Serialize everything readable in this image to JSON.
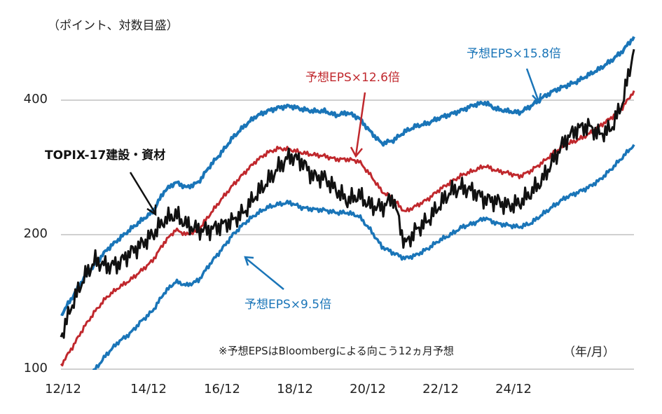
{
  "chart_data": {
    "type": "line",
    "title": "",
    "ylabel": "（ポイント、対数目盛）",
    "xlabel": "（年/月）",
    "yscale": "log",
    "ylim": [
      100,
      560
    ],
    "yticks": [
      "100",
      "200",
      "400"
    ],
    "xticks": [
      "12/12",
      "14/12",
      "16/12",
      "18/12",
      "20/12",
      "22/12",
      "24/12"
    ],
    "grid": "horizontal",
    "legend": "none (inline annotations with arrows)",
    "note": "※予想EPSはBloombergによる向こう12ヵ月予想",
    "x": [
      "2012-11",
      "2013-02",
      "2013-05",
      "2013-08",
      "2013-11",
      "2014-02",
      "2014-05",
      "2014-08",
      "2014-11",
      "2015-02",
      "2015-05",
      "2015-08",
      "2015-11",
      "2016-02",
      "2016-05",
      "2016-08",
      "2016-11",
      "2017-02",
      "2017-05",
      "2017-08",
      "2017-11",
      "2018-02",
      "2018-05",
      "2018-08",
      "2018-11",
      "2019-02",
      "2019-05",
      "2019-08",
      "2019-11",
      "2020-02",
      "2020-05",
      "2020-08",
      "2020-11",
      "2021-02",
      "2021-05",
      "2021-08",
      "2021-11",
      "2022-02",
      "2022-05",
      "2022-08",
      "2022-11",
      "2023-02",
      "2023-05",
      "2023-08",
      "2023-11",
      "2024-02",
      "2024-05",
      "2024-08",
      "2024-11",
      "2025-02",
      "2025-04"
    ],
    "series": [
      {
        "name": "TOPIX-17建設・資材",
        "color": "#111111",
        "values": [
          118,
          140,
          160,
          175,
          170,
          172,
          182,
          190,
          200,
          215,
          222,
          210,
          205,
          205,
          210,
          215,
          225,
          245,
          262,
          283,
          300,
          292,
          270,
          268,
          252,
          238,
          245,
          232,
          230,
          242,
          190,
          205,
          215,
          232,
          250,
          255,
          250,
          240,
          238,
          232,
          235,
          248,
          265,
          295,
          325,
          345,
          350,
          335,
          345,
          395,
          520
        ]
      },
      {
        "name": "予想EPS×15.8倍",
        "color": "#1a75b8",
        "values": [
          132,
          145,
          160,
          172,
          185,
          195,
          205,
          215,
          225,
          250,
          262,
          255,
          262,
          285,
          305,
          330,
          350,
          368,
          378,
          385,
          388,
          382,
          378,
          378,
          370,
          375,
          365,
          340,
          320,
          325,
          340,
          350,
          355,
          365,
          372,
          380,
          390,
          395,
          382,
          378,
          375,
          388,
          405,
          420,
          430,
          440,
          455,
          470,
          490,
          515,
          555
        ]
      },
      {
        "name": "予想EPS×12.6倍",
        "color": "#c0282d",
        "values": [
          102,
          112,
          124,
          135,
          145,
          152,
          158,
          166,
          175,
          192,
          205,
          200,
          205,
          222,
          240,
          258,
          275,
          292,
          305,
          312,
          310,
          305,
          302,
          300,
          295,
          295,
          292,
          272,
          250,
          240,
          225,
          232,
          240,
          252,
          262,
          272,
          278,
          285,
          278,
          275,
          270,
          278,
          290,
          305,
          318,
          325,
          335,
          350,
          365,
          385,
          420
        ]
      },
      {
        "name": "予想EPS×9.5倍",
        "color": "#1a75b8",
        "values": [
          80,
          84,
          92,
          100,
          108,
          115,
          120,
          128,
          135,
          148,
          157,
          154,
          158,
          172,
          185,
          200,
          212,
          222,
          230,
          234,
          236,
          230,
          228,
          227,
          224,
          224,
          220,
          205,
          188,
          182,
          177,
          180,
          186,
          194,
          200,
          208,
          212,
          218,
          212,
          210,
          208,
          212,
          222,
          232,
          242,
          248,
          255,
          265,
          280,
          298,
          318
        ]
      }
    ]
  },
  "labels": {
    "unit": "（ポイント、対数目盛）",
    "series_main": "TOPIX-17建設・資材",
    "band_hi": "予想EPS×15.8倍",
    "band_mid": "予想EPS×12.6倍",
    "band_lo": "予想EPS×9.5倍",
    "note": "※予想EPSはBloombergによる向こう12ヵ月予想",
    "xunit": "（年/月）"
  },
  "colors": {
    "topix": "#111111",
    "blue": "#1a75b8",
    "red": "#c0282d",
    "grid": "#d0d0d0"
  }
}
